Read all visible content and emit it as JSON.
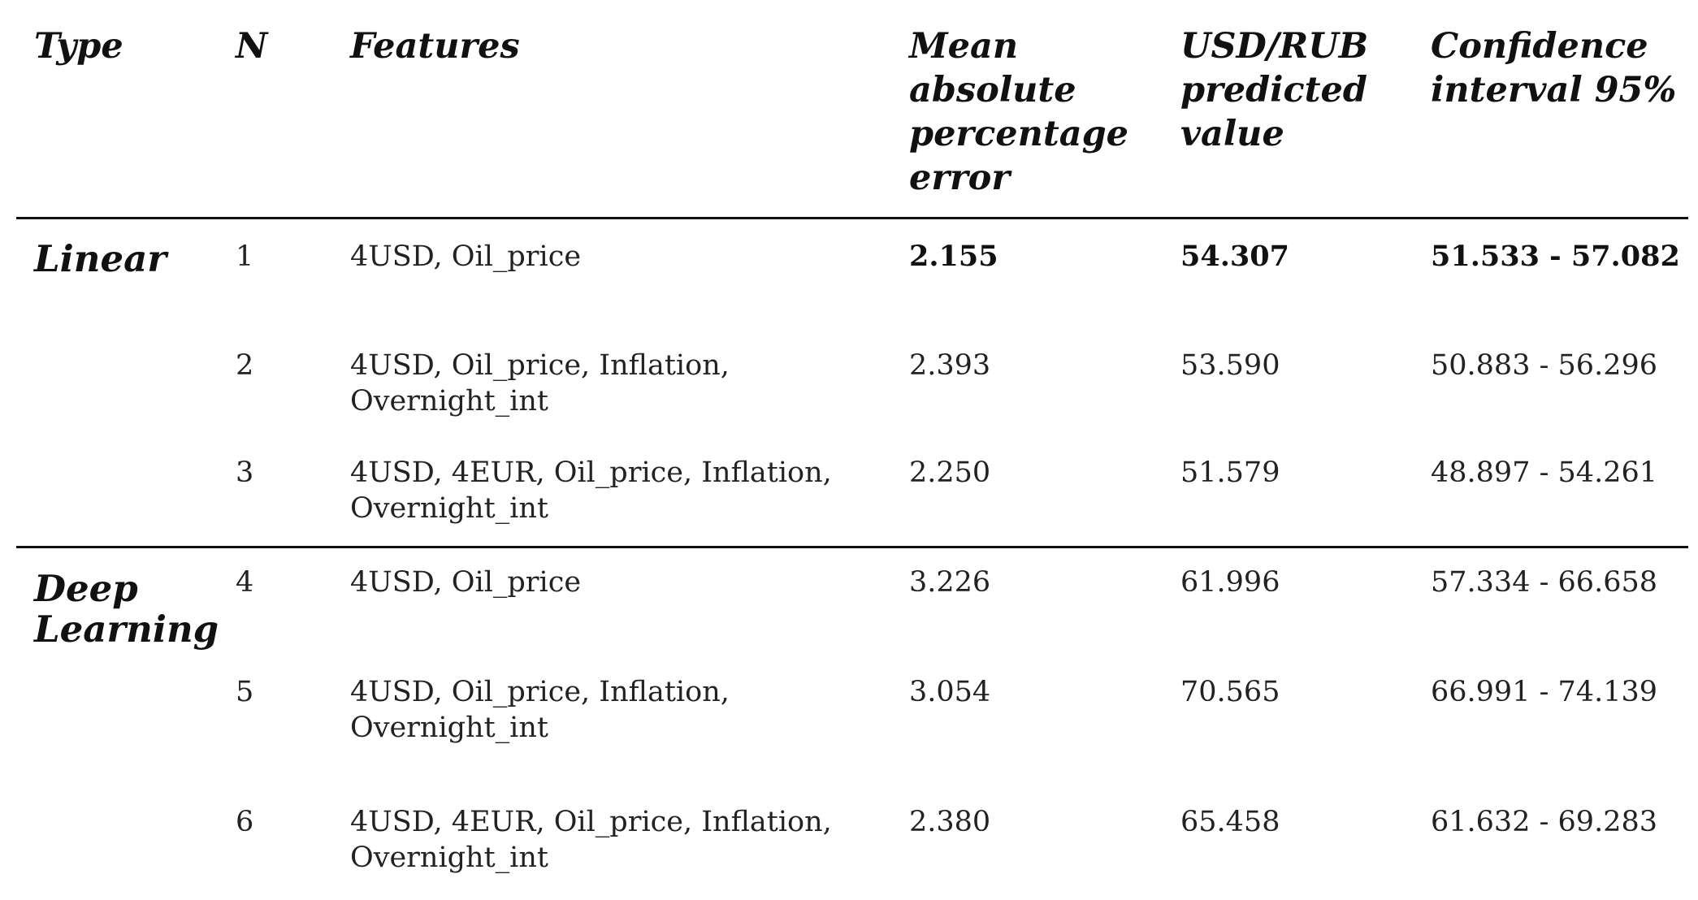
{
  "headers": {
    "type": "Type",
    "n": "N",
    "features": "Features",
    "mape": [
      "Mean",
      "absolute",
      "percentage",
      "error"
    ],
    "predicted": [
      "USD/RUB",
      "predicted",
      "value"
    ],
    "ci": [
      "Confidence",
      "interval 95%"
    ]
  },
  "groups": [
    {
      "type_lines": [
        "Linear"
      ]
    },
    {
      "type_lines": [
        "Deep",
        "Learning"
      ]
    }
  ],
  "rows": [
    {
      "n": "1",
      "features": [
        "4USD, Oil_price"
      ],
      "mape": "2.155",
      "predicted": "54.307",
      "ci": "51.533 - 57.082",
      "bold": true
    },
    {
      "n": "2",
      "features": [
        "4USD, Oil_price, Inflation,",
        "Overnight_int"
      ],
      "mape": "2.393",
      "predicted": "53.590",
      "ci": "50.883 - 56.296",
      "bold": false
    },
    {
      "n": "3",
      "features": [
        "4USD, 4EUR, Oil_price, Inflation,",
        "Overnight_int"
      ],
      "mape": "2.250",
      "predicted": "51.579",
      "ci": "48.897 - 54.261",
      "bold": false
    },
    {
      "n": "4",
      "features": [
        "4USD, Oil_price"
      ],
      "mape": "3.226",
      "predicted": "61.996",
      "ci": "57.334 - 66.658",
      "bold": false
    },
    {
      "n": "5",
      "features": [
        "4USD, Oil_price, Inflation,",
        "Overnight_int"
      ],
      "mape": "3.054",
      "predicted": "70.565",
      "ci": "66.991 - 74.139",
      "bold": false
    },
    {
      "n": "6",
      "features": [
        "4USD, 4EUR, Oil_price, Inflation,",
        "Overnight_int"
      ],
      "mape": "2.380",
      "predicted": "65.458",
      "ci": "61.632 - 69.283",
      "bold": false
    }
  ]
}
